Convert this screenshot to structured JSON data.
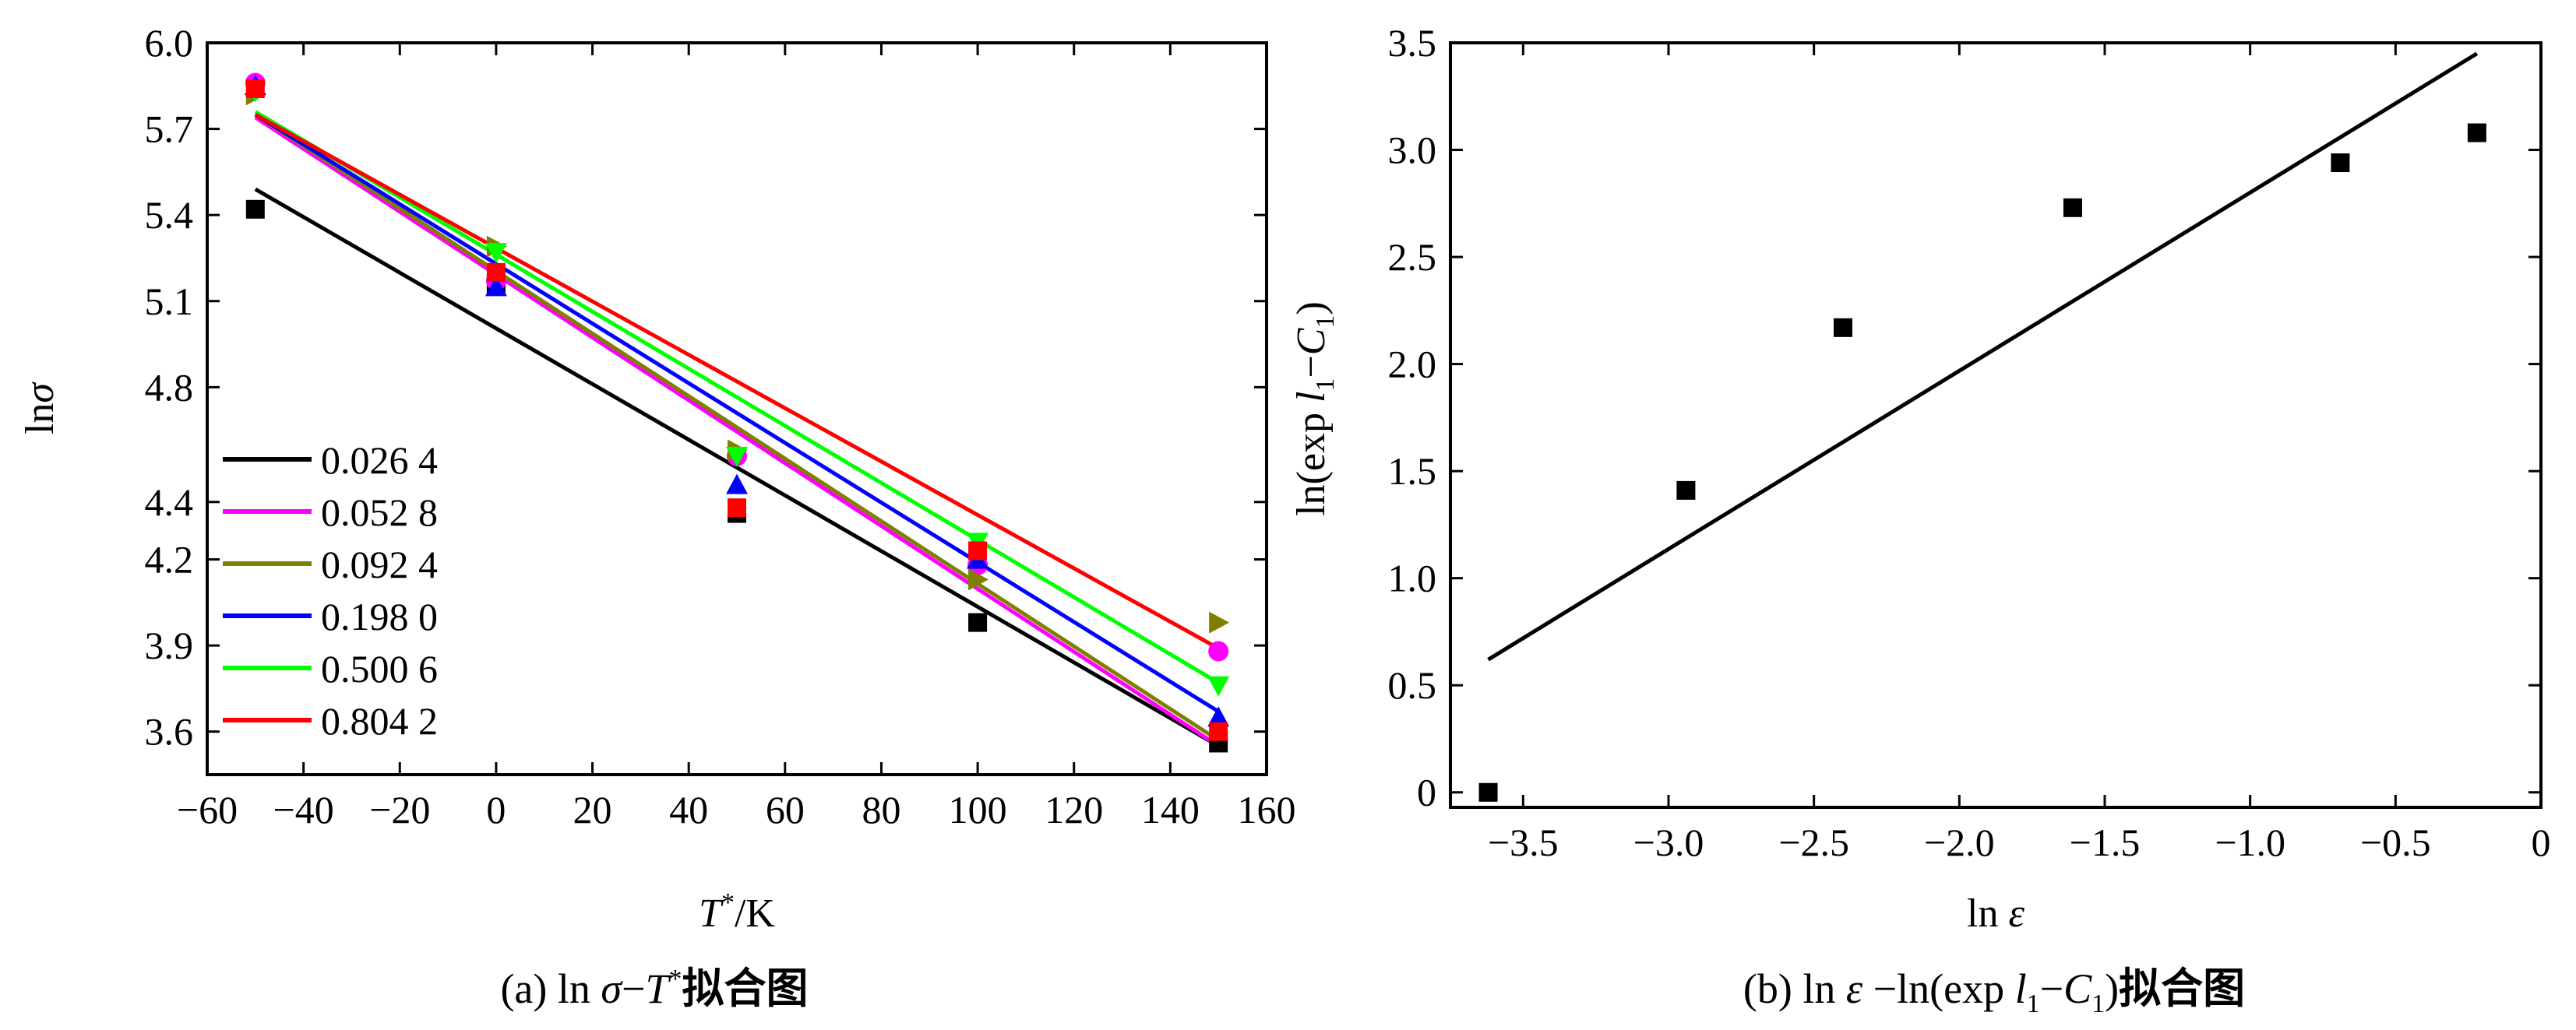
{
  "chart_data": [
    {
      "type": "scatter",
      "caption": "(a) ln σ−T*拟合图",
      "xlabel": "T*/K",
      "ylabel": "ln σ",
      "xlim": [
        -60,
        160
      ],
      "ylim": [
        3.45,
        6.0
      ],
      "xticks": [
        "−60",
        "−40",
        "−20",
        "0",
        "20",
        "40",
        "60",
        "80",
        "100",
        "120",
        "140",
        "160"
      ],
      "xtick_values": [
        -60,
        -40,
        -20,
        0,
        20,
        40,
        60,
        80,
        100,
        120,
        140,
        160
      ],
      "yticks": [
        "3.6",
        "3.9",
        "4.2",
        "4.4",
        "4.8",
        "5.1",
        "5.4",
        "5.7",
        "6.0"
      ],
      "ytick_values": [
        3.6,
        3.9,
        4.2,
        4.4,
        4.8,
        5.1,
        5.4,
        5.7,
        6.0
      ],
      "legend_position": "bottom-left",
      "series": [
        {
          "name": "0.026 4",
          "color": "#000000",
          "marker": "square",
          "x": [
            -50,
            0,
            50,
            100,
            150
          ],
          "y": [
            5.42,
            5.16,
            4.36,
            3.98,
            3.56
          ],
          "fit": [
            [
              -50,
              5.49
            ],
            [
              150,
              3.55
            ]
          ]
        },
        {
          "name": "0.052 8",
          "color": "#ff00ff",
          "marker": "circle",
          "x": [
            -50,
            0,
            50,
            100,
            150
          ],
          "y": [
            5.86,
            5.17,
            4.56,
            4.18,
            3.88
          ],
          "fit": [
            [
              -50,
              5.74
            ],
            [
              150,
              3.55
            ]
          ]
        },
        {
          "name": "0.092 4",
          "color": "#808000",
          "marker": "triangle-right",
          "x": [
            -50,
            0,
            50,
            100,
            150
          ],
          "y": [
            5.82,
            5.29,
            4.58,
            4.13,
            3.98
          ],
          "fit": [
            [
              -50,
              5.75
            ],
            [
              150,
              3.57
            ]
          ]
        },
        {
          "name": "0.198 0",
          "color": "#0000ff",
          "marker": "triangle-up",
          "x": [
            -50,
            0,
            50,
            100,
            150
          ],
          "y": [
            5.85,
            5.15,
            4.46,
            4.2,
            3.65
          ],
          "fit": [
            [
              -50,
              5.75
            ],
            [
              150,
              3.67
            ]
          ]
        },
        {
          "name": "0.500 6",
          "color": "#00ff00",
          "marker": "triangle-down",
          "x": [
            -50,
            0,
            50,
            100,
            150
          ],
          "y": [
            5.83,
            5.27,
            4.56,
            4.26,
            3.76
          ],
          "fit": [
            [
              -50,
              5.76
            ],
            [
              150,
              3.77
            ]
          ]
        },
        {
          "name": "0.804 2",
          "color": "#ff0000",
          "marker": "square",
          "x": [
            -50,
            0,
            50,
            100,
            150
          ],
          "y": [
            5.84,
            5.2,
            4.38,
            4.23,
            3.6
          ],
          "fit": [
            [
              -50,
              5.75
            ],
            [
              150,
              3.89
            ]
          ]
        }
      ]
    },
    {
      "type": "scatter",
      "caption": "(b) ln ε −ln(exp l1−C1)拟合图",
      "xlabel": "ln ε",
      "ylabel": "ln(exp l1−C1)",
      "xlim": [
        -3.75,
        0
      ],
      "ylim": [
        -0.07,
        3.5
      ],
      "xticks": [
        "−3.5",
        "−3.0",
        "−2.5",
        "−2.0",
        "−1.5",
        "−1.0",
        "−0.5",
        "0"
      ],
      "xtick_values": [
        -3.5,
        -3.0,
        -2.5,
        -2.0,
        -1.5,
        -1.0,
        -0.5,
        0
      ],
      "yticks": [
        "0",
        "0.5",
        "1.0",
        "1.5",
        "2.0",
        "2.5",
        "3.0",
        "3.5"
      ],
      "ytick_values": [
        0,
        0.5,
        1.0,
        1.5,
        2.0,
        2.5,
        3.0,
        3.5
      ],
      "series": [
        {
          "color": "#000000",
          "marker": "square",
          "x": [
            -3.62,
            -2.94,
            -2.4,
            -1.61,
            -0.69,
            -0.22
          ],
          "y": [
            0.0,
            1.41,
            2.17,
            2.73,
            2.94,
            3.08
          ],
          "fit": [
            [
              -3.62,
              0.62
            ],
            [
              -0.22,
              3.45
            ]
          ]
        }
      ]
    }
  ]
}
